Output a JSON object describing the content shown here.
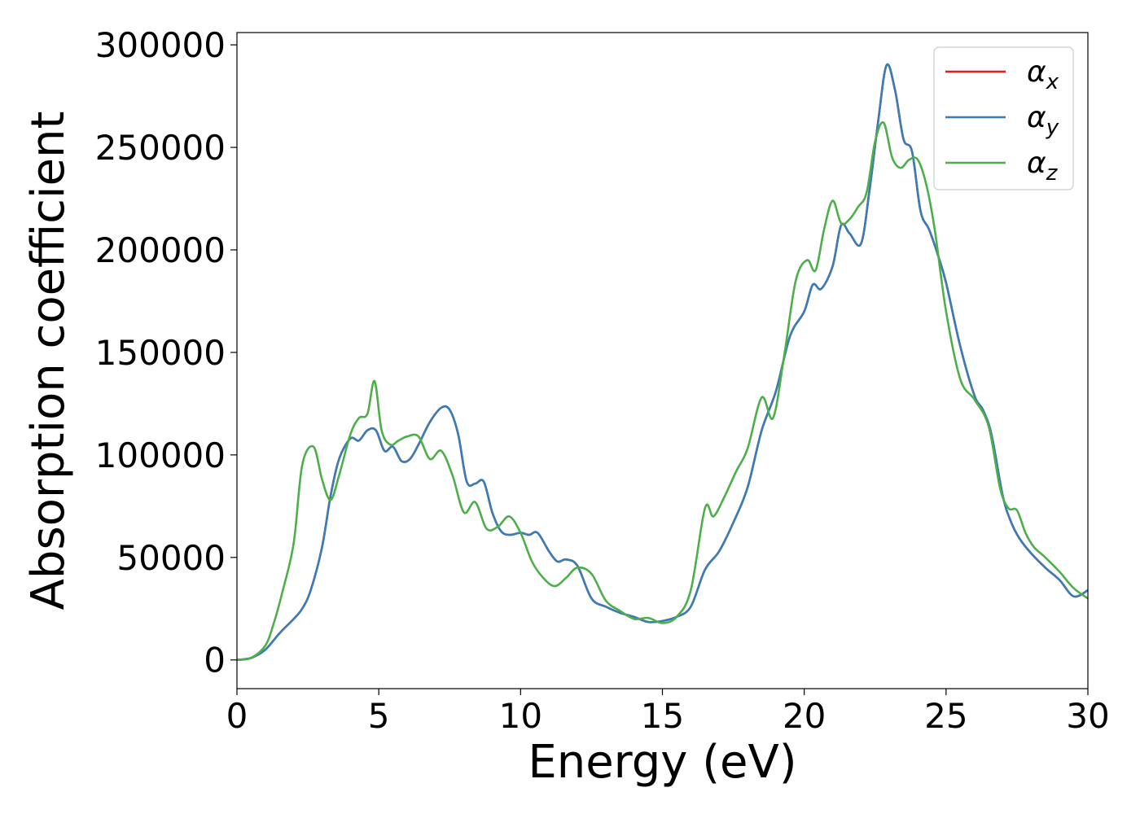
{
  "chart_data": {
    "type": "line",
    "title": "",
    "xlabel": "Energy (eV)",
    "ylabel": "Absorption coefficient",
    "xlim": [
      0,
      30
    ],
    "ylim": [
      -14000,
      306000
    ],
    "xticks": [
      0,
      5,
      10,
      15,
      20,
      25,
      30
    ],
    "xtick_labels": [
      "0",
      "5",
      "10",
      "15",
      "20",
      "25",
      "30"
    ],
    "yticks": [
      0,
      50000,
      100000,
      150000,
      200000,
      250000,
      300000
    ],
    "ytick_labels": [
      "0",
      "50000",
      "100000",
      "150000",
      "200000",
      "250000",
      "300000"
    ],
    "grid": false,
    "legend_position": "top-right",
    "series": [
      {
        "name": "α_x",
        "label_main": "α",
        "label_sub": "x",
        "color": "#e41a1c",
        "x": [
          0,
          0.5,
          1,
          1.5,
          2,
          2.3,
          2.6,
          3,
          3.3,
          3.6,
          4,
          4.3,
          4.6,
          4.9,
          5.2,
          5.5,
          5.8,
          6.1,
          6.4,
          6.8,
          7.2,
          7.5,
          7.8,
          8.1,
          8.4,
          8.7,
          9,
          9.3,
          9.6,
          10,
          10.3,
          10.6,
          11,
          11.3,
          11.6,
          12,
          12.5,
          13,
          13.5,
          14,
          14.5,
          15,
          15.5,
          16,
          16.5,
          17,
          17.5,
          18,
          18.5,
          19,
          19.5,
          20,
          20.3,
          20.6,
          21,
          21.3,
          21.6,
          22,
          22.3,
          22.6,
          22.9,
          23.2,
          23.5,
          23.8,
          24.1,
          24.4,
          24.7,
          25,
          25.5,
          26,
          26.3,
          26.6,
          27,
          27.3,
          27.6,
          28,
          28.5,
          29,
          29.5,
          30
        ],
        "y": [
          0,
          1000,
          5000,
          13000,
          20000,
          25000,
          34000,
          55000,
          80000,
          98000,
          108000,
          107000,
          112000,
          112000,
          102000,
          104000,
          97000,
          98000,
          105000,
          116000,
          123000,
          122000,
          110000,
          87000,
          86000,
          87000,
          72000,
          63000,
          61000,
          62000,
          61000,
          62000,
          53000,
          48000,
          49000,
          46000,
          30000,
          26000,
          23000,
          21000,
          18500,
          19000,
          21000,
          26000,
          44000,
          53000,
          67000,
          84000,
          112000,
          131000,
          158000,
          170000,
          183000,
          181000,
          192000,
          212000,
          208000,
          203000,
          229000,
          262000,
          290000,
          278000,
          254000,
          248000,
          219000,
          210000,
          198000,
          184000,
          153000,
          129000,
          122000,
          110000,
          80000,
          67000,
          59000,
          52000,
          45000,
          39000,
          31000,
          34000
        ]
      },
      {
        "name": "α_y",
        "label_main": "α",
        "label_sub": "y",
        "color": "#377eb8",
        "x": [
          0,
          0.5,
          1,
          1.5,
          2,
          2.3,
          2.6,
          3,
          3.3,
          3.6,
          4,
          4.3,
          4.6,
          4.9,
          5.2,
          5.5,
          5.8,
          6.1,
          6.4,
          6.8,
          7.2,
          7.5,
          7.8,
          8.1,
          8.4,
          8.7,
          9,
          9.3,
          9.6,
          10,
          10.3,
          10.6,
          11,
          11.3,
          11.6,
          12,
          12.5,
          13,
          13.5,
          14,
          14.5,
          15,
          15.5,
          16,
          16.5,
          17,
          17.5,
          18,
          18.5,
          19,
          19.5,
          20,
          20.3,
          20.6,
          21,
          21.3,
          21.6,
          22,
          22.3,
          22.6,
          22.9,
          23.2,
          23.5,
          23.8,
          24.1,
          24.4,
          24.7,
          25,
          25.5,
          26,
          26.3,
          26.6,
          27,
          27.3,
          27.6,
          28,
          28.5,
          29,
          29.5,
          30
        ],
        "y": [
          0,
          1000,
          5000,
          13000,
          20000,
          25000,
          34000,
          55000,
          80000,
          98000,
          108000,
          107000,
          112000,
          112000,
          102000,
          104000,
          97000,
          98000,
          105000,
          116000,
          123000,
          122000,
          110000,
          87000,
          86000,
          87000,
          72000,
          63000,
          61000,
          62000,
          61000,
          62000,
          53000,
          48000,
          49000,
          46000,
          30000,
          26000,
          23000,
          21000,
          18500,
          19000,
          21000,
          26000,
          44000,
          53000,
          67000,
          84000,
          112000,
          131000,
          158000,
          170000,
          183000,
          181000,
          192000,
          212000,
          208000,
          203000,
          229000,
          262000,
          290000,
          278000,
          254000,
          248000,
          219000,
          210000,
          198000,
          184000,
          153000,
          129000,
          122000,
          110000,
          80000,
          67000,
          59000,
          52000,
          45000,
          39000,
          31000,
          34000
        ]
      },
      {
        "name": "α_z",
        "label_main": "α",
        "label_sub": "z",
        "color": "#4daf4a",
        "x": [
          0,
          0.5,
          1,
          1.3,
          1.6,
          2,
          2.3,
          2.7,
          3,
          3.3,
          3.6,
          4,
          4.3,
          4.6,
          4.85,
          5.1,
          5.4,
          5.7,
          6,
          6.4,
          6.8,
          7.2,
          7.6,
          8,
          8.4,
          8.8,
          9.2,
          9.6,
          10,
          10.4,
          10.8,
          11.2,
          11.6,
          12,
          12.5,
          13,
          13.5,
          14,
          14.5,
          15,
          15.5,
          16,
          16.5,
          16.8,
          17.2,
          17.6,
          18,
          18.5,
          18.9,
          19.3,
          19.7,
          20.1,
          20.4,
          20.7,
          21,
          21.3,
          21.6,
          21.9,
          22.2,
          22.5,
          22.8,
          23.1,
          23.4,
          23.7,
          24,
          24.3,
          24.6,
          25,
          25.5,
          26,
          26.5,
          26.9,
          27.2,
          27.5,
          27.8,
          28.1,
          28.5,
          29,
          29.5,
          30
        ],
        "y": [
          0,
          1000,
          7000,
          18000,
          33000,
          57000,
          95000,
          104000,
          88000,
          78000,
          90000,
          110000,
          118000,
          120000,
          136000,
          112000,
          105000,
          107000,
          109000,
          109000,
          98000,
          102000,
          90000,
          72000,
          77000,
          64000,
          65000,
          70000,
          62000,
          48000,
          40000,
          36000,
          40000,
          45000,
          42000,
          29000,
          24000,
          20000,
          20500,
          18000,
          21000,
          34000,
          74000,
          70000,
          80000,
          92000,
          103000,
          128000,
          118000,
          149000,
          185000,
          195000,
          190000,
          210000,
          224000,
          213000,
          215000,
          221000,
          228000,
          253000,
          262000,
          245000,
          240000,
          244000,
          244000,
          232000,
          210000,
          170000,
          137000,
          127000,
          114000,
          84000,
          74000,
          73000,
          62000,
          55000,
          50000,
          43000,
          35000,
          30000
        ]
      }
    ]
  }
}
